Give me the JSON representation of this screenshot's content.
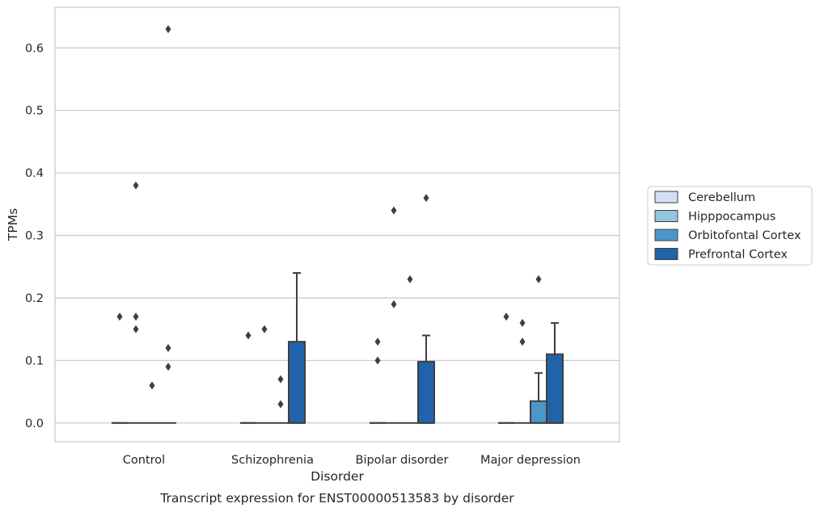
{
  "chart_data": {
    "type": "box",
    "title": "Transcript expression for ENST00000513583 by disorder",
    "xlabel": "Disorder",
    "ylabel": "TPMs",
    "ylim": [
      -0.03,
      0.665
    ],
    "yticks": [
      "0.0",
      "0.1",
      "0.2",
      "0.3",
      "0.4",
      "0.5",
      "0.6"
    ],
    "categories": [
      "Control",
      "Schizophrenia",
      "Bipolar disorder",
      "Major depression"
    ],
    "grid": true,
    "legend_position": "right",
    "series": [
      {
        "name": "Cerebellum",
        "color": "#d0e1f2",
        "boxes": [
          {
            "q1": 0,
            "median": 0,
            "q3": 0,
            "whisker_low": 0,
            "whisker_high": 0,
            "outliers": []
          },
          {
            "q1": 0,
            "median": 0,
            "q3": 0,
            "whisker_low": 0,
            "whisker_high": 0,
            "outliers": []
          },
          {
            "q1": 0,
            "median": 0,
            "q3": 0,
            "whisker_low": 0,
            "whisker_high": 0,
            "outliers": []
          },
          {
            "q1": 0,
            "median": 0,
            "q3": 0,
            "whisker_low": 0,
            "whisker_high": 0,
            "outliers": []
          }
        ]
      },
      {
        "name": "Hipppocampus",
        "color": "#94c4df",
        "boxes": [
          {
            "q1": 0,
            "median": 0,
            "q3": 0,
            "whisker_low": 0,
            "whisker_high": 0,
            "outliers": [
              0.17,
              0.15,
              0.38
            ]
          },
          {
            "q1": 0,
            "median": 0,
            "q3": 0,
            "whisker_low": 0,
            "whisker_high": 0,
            "outliers": [
              0.15
            ]
          },
          {
            "q1": 0,
            "median": 0,
            "q3": 0,
            "whisker_low": 0,
            "whisker_high": 0,
            "outliers": [
              0.19,
              0.34
            ]
          },
          {
            "q1": 0,
            "median": 0,
            "q3": 0,
            "whisker_low": 0,
            "whisker_high": 0,
            "outliers": [
              0.16,
              0.13
            ]
          }
        ]
      },
      {
        "name": "Orbitofontal Cortex",
        "color": "#4a98c9",
        "boxes": [
          {
            "q1": 0,
            "median": 0,
            "q3": 0,
            "whisker_low": 0,
            "whisker_high": 0,
            "outliers": [
              0.06
            ]
          },
          {
            "q1": 0,
            "median": 0,
            "q3": 0,
            "whisker_low": 0,
            "whisker_high": 0,
            "outliers": [
              0.07,
              0.03
            ]
          },
          {
            "q1": 0,
            "median": 0,
            "q3": 0,
            "whisker_low": 0,
            "whisker_high": 0,
            "outliers": [
              0.23
            ]
          },
          {
            "q1": 0,
            "median": 0,
            "q3": 0.035,
            "whisker_low": 0,
            "whisker_high": 0.08,
            "outliers": [
              0.23
            ]
          }
        ]
      },
      {
        "name": "Prefrontal Cortex",
        "color": "#2163aa",
        "boxes": [
          {
            "q1": 0,
            "median": 0,
            "q3": 0,
            "whisker_low": 0,
            "whisker_high": 0,
            "outliers": [
              0.63,
              0.12,
              0.09
            ]
          },
          {
            "q1": 0,
            "median": 0,
            "q3": 0.13,
            "whisker_low": 0,
            "whisker_high": 0.24,
            "outliers": []
          },
          {
            "q1": 0,
            "median": 0,
            "q3": 0.098,
            "whisker_low": 0,
            "whisker_high": 0.14,
            "outliers": [
              0.36
            ]
          },
          {
            "q1": 0,
            "median": 0,
            "q3": 0.11,
            "whisker_low": 0,
            "whisker_high": 0.16,
            "outliers": []
          }
        ]
      },
      {
        "name": "",
        "color": "#d0e1f2",
        "boxes": [
          {
            "q1": 0,
            "median": 0,
            "q3": 0,
            "whisker_low": 0,
            "whisker_high": 0,
            "outliers": [
              0.17
            ]
          },
          {
            "q1": 0,
            "median": 0,
            "q3": 0,
            "whisker_low": 0,
            "whisker_high": 0,
            "outliers": [
              0.14
            ]
          },
          {
            "q1": 0,
            "median": 0,
            "q3": 0,
            "whisker_low": 0,
            "whisker_high": 0,
            "outliers": [
              0.13,
              0.1
            ]
          },
          {
            "q1": 0,
            "median": 0,
            "q3": 0,
            "whisker_low": 0,
            "whisker_high": 0,
            "outliers": [
              0.17
            ]
          }
        ]
      }
    ],
    "colors": {
      "grid": "#cccccc",
      "axes_edge": "#cccccc",
      "box_edge": "#3f3f3f",
      "outlier": "#3f3f3f"
    }
  }
}
